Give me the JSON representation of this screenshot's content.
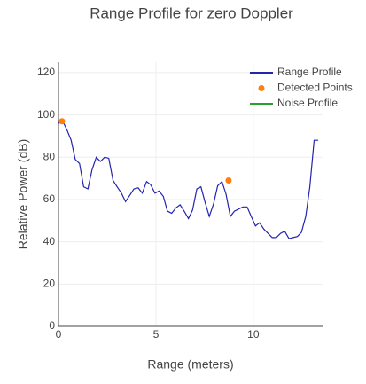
{
  "chart_data": {
    "type": "line",
    "title": "Range Profile for zero Doppler",
    "x_label": "Range (meters)",
    "y_label": "Relative Power (dB)",
    "xlim": [
      0,
      13.6
    ],
    "ylim": [
      0,
      125
    ],
    "xticks": [
      0,
      5,
      10
    ],
    "yticks": [
      0,
      20,
      40,
      60,
      80,
      100,
      120
    ],
    "grid": true,
    "legend": "top-right",
    "series": [
      {
        "name": "Range Profile",
        "mode": "lines",
        "color": "#2424b0",
        "x": [
          0,
          0.22,
          0.43,
          0.65,
          0.86,
          1.08,
          1.29,
          1.51,
          1.72,
          1.94,
          2.15,
          2.37,
          2.58,
          2.8,
          3.01,
          3.23,
          3.44,
          3.66,
          3.87,
          4.09,
          4.3,
          4.52,
          4.73,
          4.95,
          5.16,
          5.38,
          5.59,
          5.81,
          6.02,
          6.24,
          6.45,
          6.67,
          6.88,
          7.1,
          7.31,
          7.53,
          7.74,
          7.96,
          8.17,
          8.39,
          8.6,
          8.82,
          9.03,
          9.25,
          9.46,
          9.68,
          9.89,
          10.11,
          10.32,
          10.54,
          10.75,
          10.97,
          11.18,
          11.4,
          11.61,
          11.83,
          12.04,
          12.26,
          12.47,
          12.69,
          12.9,
          13.12,
          13.33
        ],
        "values": [
          96,
          97,
          93,
          88,
          79,
          77,
          66,
          65,
          74,
          80,
          78,
          80,
          79.5,
          69,
          66,
          63,
          59,
          62,
          65,
          65.5,
          63,
          68.5,
          67,
          63,
          64,
          61.5,
          54.5,
          53.5,
          56,
          57.5,
          54.5,
          51,
          55,
          65,
          66,
          58.5,
          52,
          58,
          66.5,
          68.5,
          62.5,
          52,
          54.5,
          55.5,
          56.5,
          56.5,
          52,
          47.5,
          49,
          46,
          44,
          42,
          42,
          44,
          45,
          41.5,
          42,
          42.5,
          44.5,
          52,
          66,
          88,
          88
        ]
      },
      {
        "name": "Detected Points",
        "mode": "markers",
        "color": "#ff7f0e",
        "x": [
          0.18,
          8.73
        ],
        "values": [
          97,
          69
        ]
      },
      {
        "name": "Noise Profile",
        "mode": "lines",
        "color": "#2ca02c",
        "x": [],
        "values": []
      }
    ]
  }
}
